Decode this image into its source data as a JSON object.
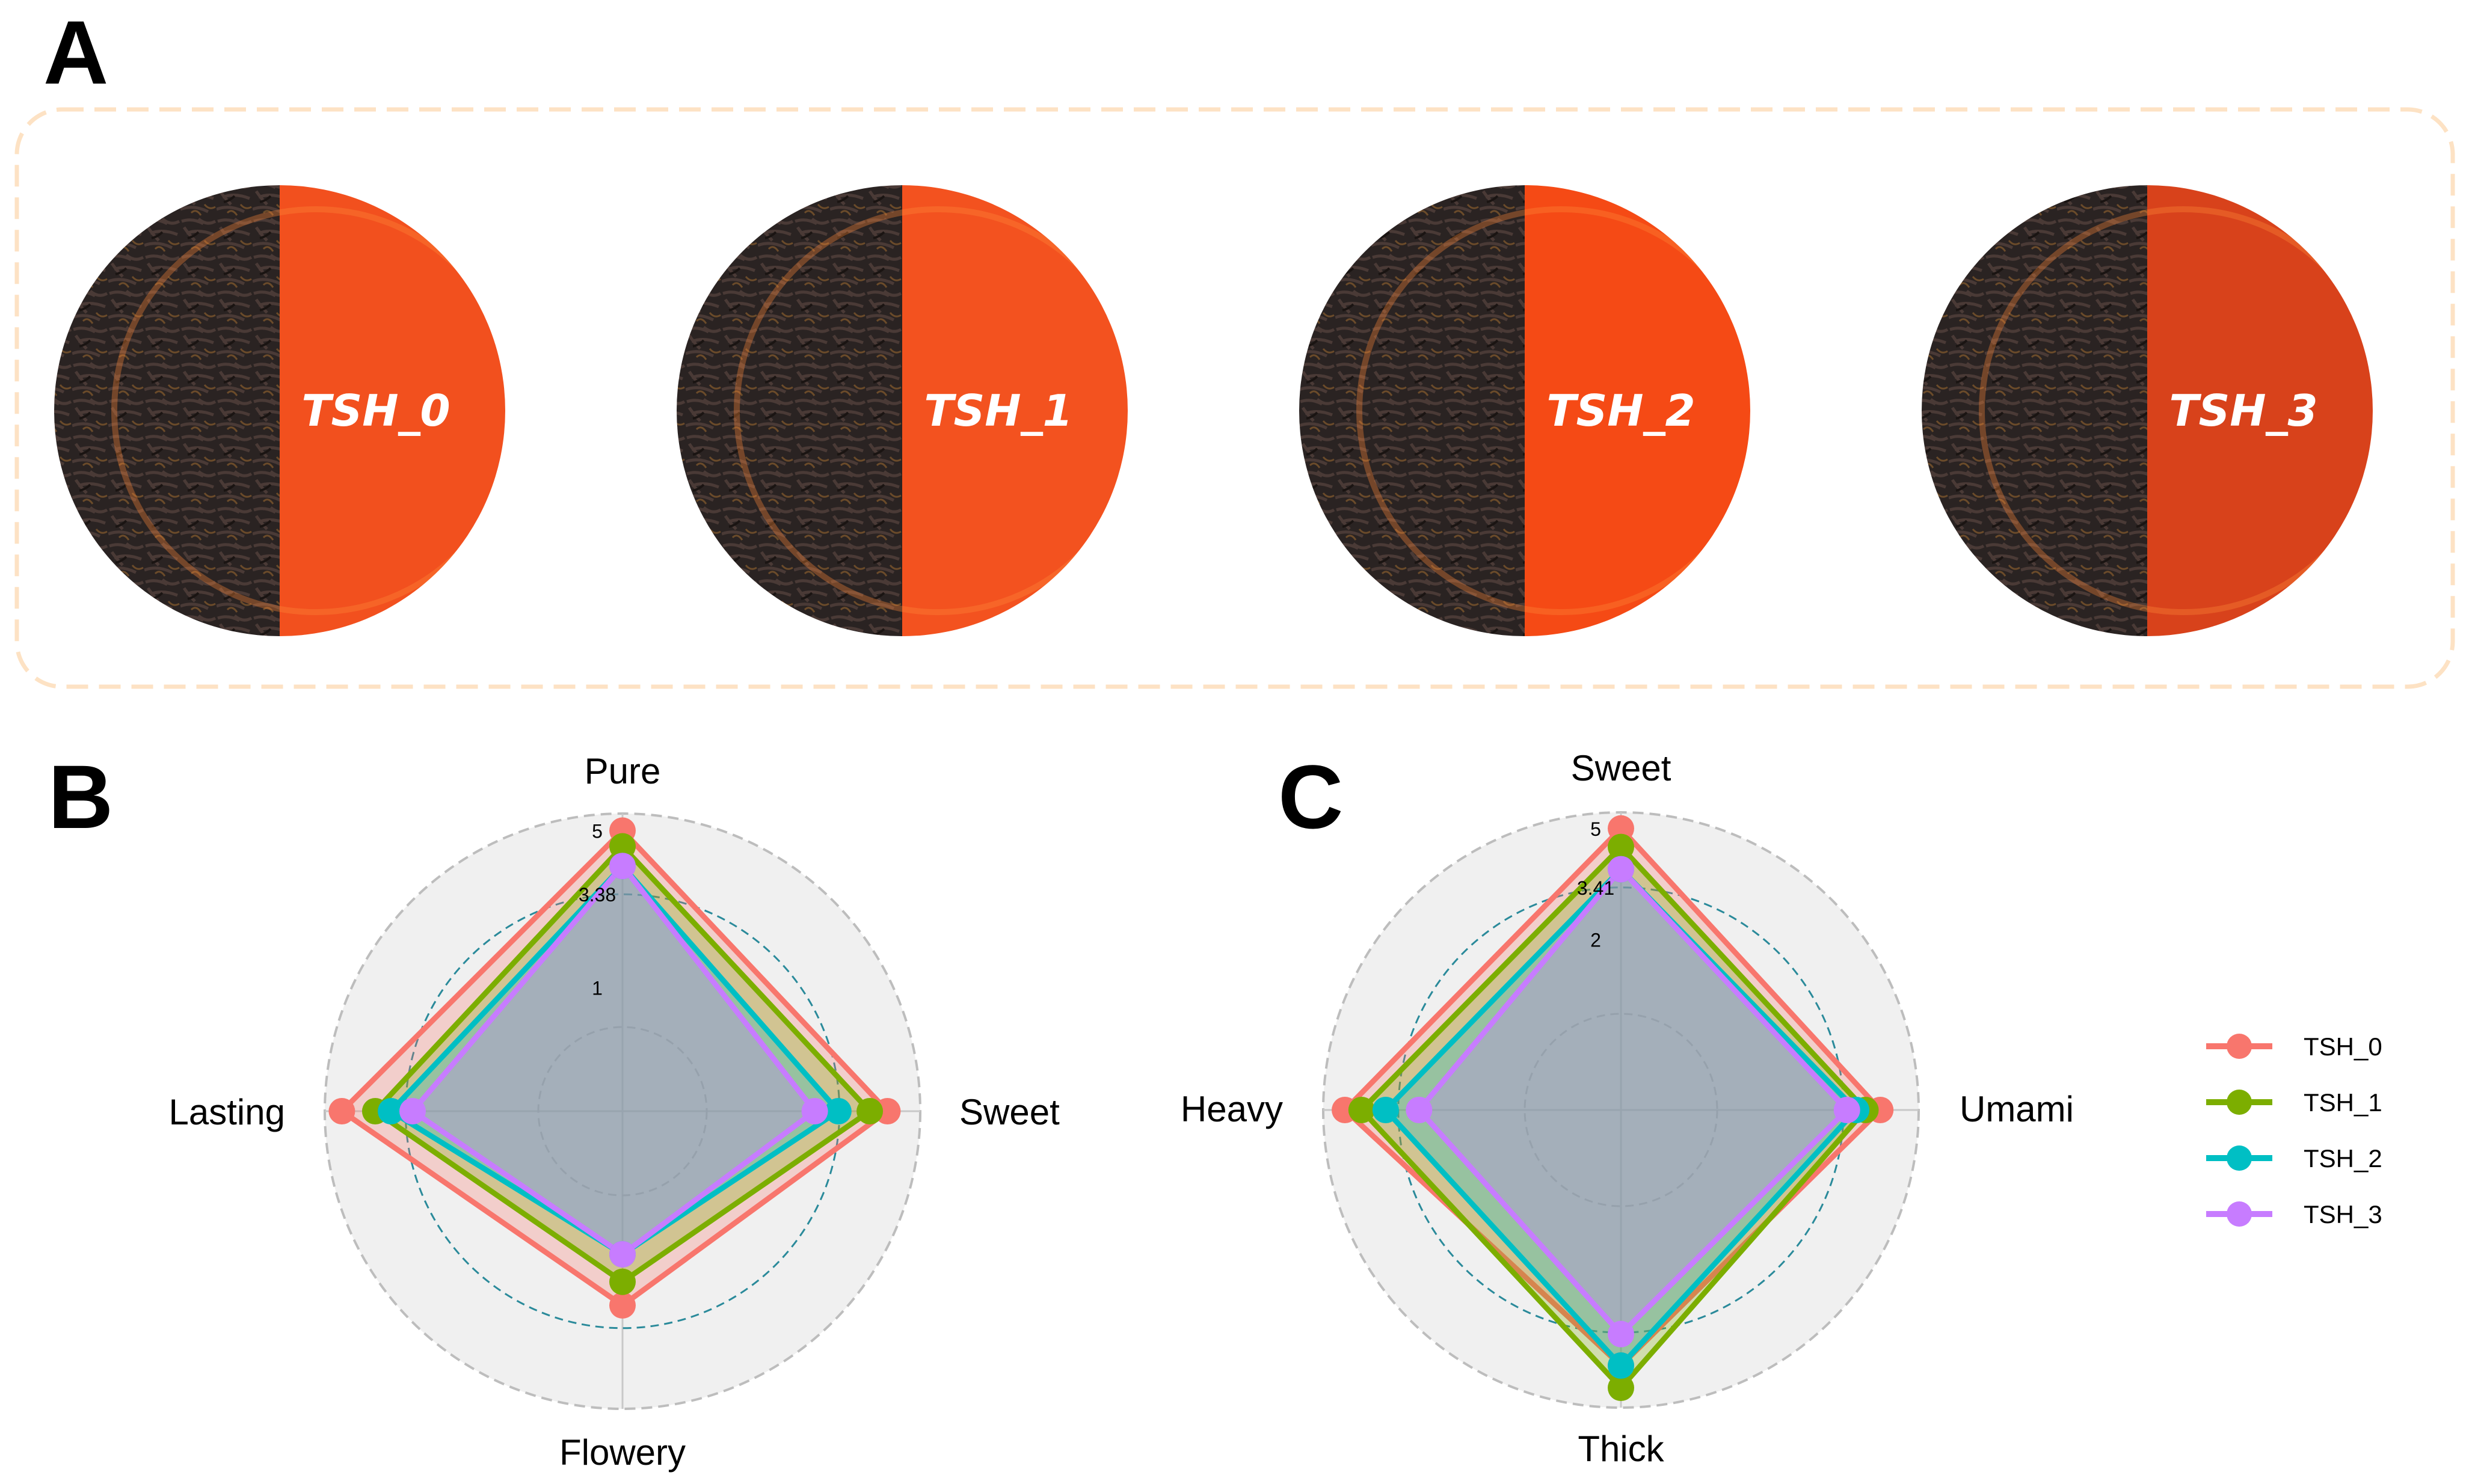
{
  "panels": {
    "a": "A",
    "b": "B",
    "c": "C"
  },
  "photos": [
    {
      "label": "TSH_0",
      "liquor_color": "#f2501e"
    },
    {
      "label": "TSH_1",
      "liquor_color": "#f3521f"
    },
    {
      "label": "TSH_2",
      "liquor_color": "#f54a15"
    },
    {
      "label": "TSH_3",
      "liquor_color": "#d8421b"
    }
  ],
  "colors": {
    "TSH_0": "#f8766d",
    "TSH_1": "#7cae00",
    "TSH_2": "#00bfc4",
    "TSH_3": "#c77cff",
    "frame": "#fde2c4",
    "grid_bg": "#f0f0f0",
    "mid_ring": "#2a8a9a"
  },
  "legend": [
    "TSH_0",
    "TSH_1",
    "TSH_2",
    "TSH_3"
  ],
  "chart_data": [
    {
      "type": "radar",
      "panel": "B",
      "axes": [
        "Pure",
        "Sweet",
        "Flowery",
        "Lasting"
      ],
      "range": [
        0,
        5
      ],
      "ring_labels": [
        "5",
        "3.38",
        "1"
      ],
      "series": [
        {
          "name": "TSH_0",
          "values": [
            5.0,
            4.6,
            2.8,
            5.0
          ]
        },
        {
          "name": "TSH_1",
          "values": [
            4.6,
            4.15,
            2.2,
            4.15
          ]
        },
        {
          "name": "TSH_2",
          "values": [
            4.1,
            3.35,
            1.5,
            3.75
          ]
        },
        {
          "name": "TSH_3",
          "values": [
            4.1,
            2.75,
            1.5,
            3.2
          ]
        }
      ]
    },
    {
      "type": "radar",
      "panel": "C",
      "axes": [
        "Sweet",
        "Umami",
        "Thick",
        "Heavy"
      ],
      "range": [
        0,
        5
      ],
      "ring_labels": [
        "5",
        "3.41",
        "2"
      ],
      "series": [
        {
          "name": "TSH_0",
          "values": [
            5.0,
            4.4,
            4.3,
            4.85
          ]
        },
        {
          "name": "TSH_1",
          "values": [
            4.5,
            4.0,
            4.9,
            4.4
          ]
        },
        {
          "name": "TSH_2",
          "values": [
            3.9,
            3.75,
            4.3,
            3.75
          ]
        },
        {
          "name": "TSH_3",
          "values": [
            3.9,
            3.5,
            3.45,
            2.85
          ]
        }
      ]
    }
  ]
}
